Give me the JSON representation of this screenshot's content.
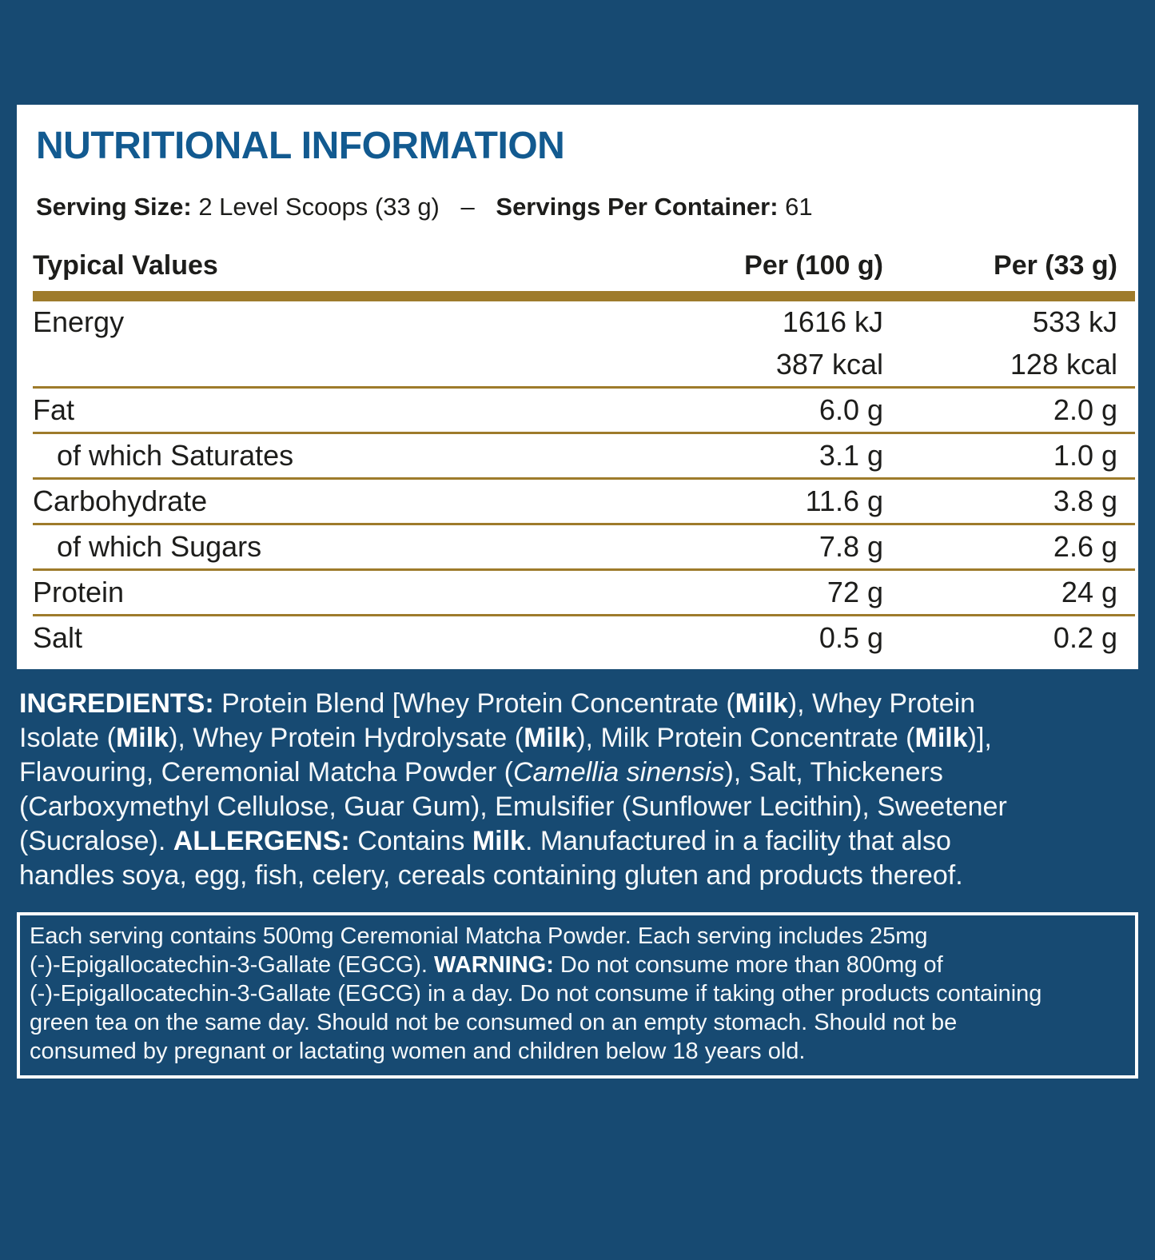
{
  "colors": {
    "background": "#174A72",
    "panel_background": "#FFFFFF",
    "title_blue": "#125A90",
    "gold_rule": "#9E7B2B",
    "text_dark": "#1D1D1B",
    "text_light": "#F5F8FA"
  },
  "panel": {
    "title": "NUTRITIONAL INFORMATION",
    "serving": {
      "size_label": "Serving Size:",
      "size_value": "2 Level Scoops (33 g)",
      "separator": "–",
      "servings_label": "Servings Per Container:",
      "servings_value": "61"
    },
    "table": {
      "header": {
        "col_label": "Typical Values",
        "col_per100": "Per (100 g)",
        "col_per33": "Per (33 g)"
      },
      "rows": [
        {
          "label": "Energy",
          "indent": false,
          "values": [
            {
              "per100": "1616 kJ",
              "per33": "533 kJ"
            },
            {
              "per100": "387 kcal",
              "per33": "128 kcal"
            }
          ]
        },
        {
          "label": "Fat",
          "indent": false,
          "values": [
            {
              "per100": "6.0 g",
              "per33": "2.0 g"
            }
          ]
        },
        {
          "label": "of which Saturates",
          "indent": true,
          "values": [
            {
              "per100": "3.1 g",
              "per33": "1.0 g"
            }
          ]
        },
        {
          "label": "Carbohydrate",
          "indent": false,
          "values": [
            {
              "per100": "11.6 g",
              "per33": "3.8 g"
            }
          ]
        },
        {
          "label": "of which Sugars",
          "indent": true,
          "values": [
            {
              "per100": "7.8 g",
              "per33": "2.6 g"
            }
          ]
        },
        {
          "label": "Protein",
          "indent": false,
          "values": [
            {
              "per100": "72 g",
              "per33": "24 g"
            }
          ]
        },
        {
          "label": "Salt",
          "indent": false,
          "values": [
            {
              "per100": "0.5 g",
              "per33": "0.2 g"
            }
          ]
        }
      ]
    }
  },
  "ingredients": {
    "lines": [
      [
        {
          "t": "INGREDIENTS: ",
          "b": true
        },
        {
          "t": "Protein Blend [Whey Protein Concentrate ("
        },
        {
          "t": "Milk",
          "b": true
        },
        {
          "t": "), Whey Protein"
        }
      ],
      [
        {
          "t": "Isolate ("
        },
        {
          "t": "Milk",
          "b": true
        },
        {
          "t": "), Whey Protein Hydrolysate ("
        },
        {
          "t": "Milk",
          "b": true
        },
        {
          "t": "), Milk Protein Concentrate ("
        },
        {
          "t": "Milk",
          "b": true
        },
        {
          "t": ")],"
        }
      ],
      [
        {
          "t": "Flavouring, Ceremonial Matcha Powder ("
        },
        {
          "t": "Camellia sinensis",
          "i": true
        },
        {
          "t": "), Salt, Thickeners"
        }
      ],
      [
        {
          "t": "(Carboxymethyl Cellulose, Guar Gum), Emulsifier (Sunflower Lecithin), Sweetener"
        }
      ],
      [
        {
          "t": "(Sucralose). "
        },
        {
          "t": "ALLERGENS: ",
          "b": true
        },
        {
          "t": "Contains "
        },
        {
          "t": "Milk",
          "b": true
        },
        {
          "t": ". Manufactured in a facility that also"
        }
      ],
      [
        {
          "t": "handles soya, egg, fish, celery, cereals containing gluten and products thereof."
        }
      ]
    ]
  },
  "warning": {
    "lines": [
      [
        {
          "t": "Each serving contains 500mg Ceremonial Matcha Powder. Each serving includes 25mg"
        }
      ],
      [
        {
          "t": "(-)-Epigallocatechin-3-Gallate (EGCG). "
        },
        {
          "t": "WARNING: ",
          "b": true
        },
        {
          "t": "Do not consume more than 800mg of"
        }
      ],
      [
        {
          "t": "(-)-Epigallocatechin-3-Gallate (EGCG) in a day. Do not consume if taking other products containing"
        }
      ],
      [
        {
          "t": "green tea on the same day. Should not be consumed on an empty stomach. Should not be"
        }
      ],
      [
        {
          "t": "consumed by pregnant or lactating women and children below 18 years old."
        }
      ]
    ]
  }
}
